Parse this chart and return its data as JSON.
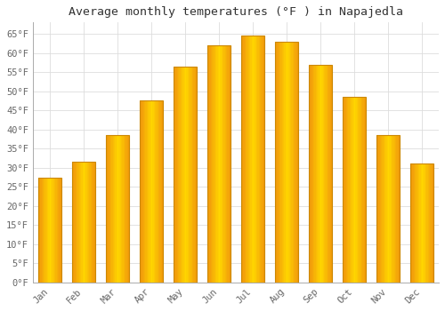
{
  "title": "Average monthly temperatures (°F ) in Napajedla",
  "months": [
    "Jan",
    "Feb",
    "Mar",
    "Apr",
    "May",
    "Jun",
    "Jul",
    "Aug",
    "Sep",
    "Oct",
    "Nov",
    "Dec"
  ],
  "values": [
    27.5,
    31.5,
    38.5,
    47.5,
    56.5,
    62.0,
    64.5,
    63.0,
    57.0,
    48.5,
    38.5,
    31.0
  ],
  "bar_color_main": "#FFA500",
  "bar_color_edge": "#B8860B",
  "background_color": "#ffffff",
  "grid_color": "#dddddd",
  "text_color": "#666666",
  "title_color": "#333333",
  "ylim": [
    0,
    68
  ],
  "yticks": [
    0,
    5,
    10,
    15,
    20,
    25,
    30,
    35,
    40,
    45,
    50,
    55,
    60,
    65
  ],
  "title_fontsize": 9.5,
  "tick_fontsize": 7.5,
  "font_family": "monospace"
}
